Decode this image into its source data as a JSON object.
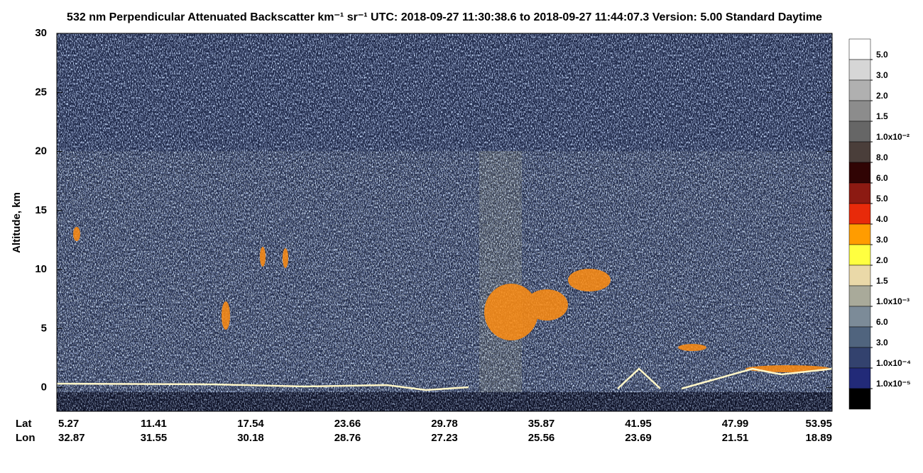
{
  "chart_data": {
    "type": "heatmap",
    "title": "532 nm Perpendicular Attenuated Backscatter km⁻¹ sr⁻¹  UTC: 2018-09-27 11:30:38.6 to 2018-09-27 11:44:07.3  Version: 5.00 Standard Daytime",
    "y_label": "Altitude, km",
    "ylim": [
      -2,
      30
    ],
    "yticks": [
      0,
      5,
      10,
      15,
      20,
      25,
      30
    ],
    "x_labels": [
      {
        "name": "Lat",
        "values": [
          5.27,
          11.41,
          17.54,
          23.66,
          29.78,
          35.87,
          41.95,
          47.99,
          53.95
        ]
      },
      {
        "name": "Lon",
        "values": [
          32.87,
          31.55,
          30.18,
          28.76,
          27.23,
          25.56,
          23.69,
          21.51,
          18.89
        ]
      }
    ],
    "colorscale": {
      "colors": [
        "#ffffff",
        "#d6d6d6",
        "#b0b0b0",
        "#8c8c8c",
        "#666666",
        "#4a3e3a",
        "#300404",
        "#8c1a12",
        "#e82a0a",
        "#ff9c00",
        "#ffff40",
        "#ead9a8",
        "#a9aa9a",
        "#7c8b98",
        "#50647e",
        "#33426e",
        "#222a78",
        "#000000"
      ],
      "ticks": [
        {
          "value": 0.05,
          "label": "5.0"
        },
        {
          "value": 0.03,
          "label": "3.0"
        },
        {
          "value": 0.02,
          "label": "2.0"
        },
        {
          "value": 0.015,
          "label": "1.5"
        },
        {
          "value": 0.01,
          "label": "1.0x10⁻²"
        },
        {
          "value": 0.008,
          "label": "8.0"
        },
        {
          "value": 0.006,
          "label": "6.0"
        },
        {
          "value": 0.005,
          "label": "5.0"
        },
        {
          "value": 0.004,
          "label": "4.0"
        },
        {
          "value": 0.003,
          "label": "3.0"
        },
        {
          "value": 0.002,
          "label": "2.0"
        },
        {
          "value": 0.0015,
          "label": "1.5"
        },
        {
          "value": 0.001,
          "label": "1.0x10⁻³"
        },
        {
          "value": 0.0006,
          "label": "6.0"
        },
        {
          "value": 0.0003,
          "label": "3.0"
        },
        {
          "value": 0.0001,
          "label": "1.0x10⁻⁴"
        },
        {
          "value": 1e-05,
          "label": "1.0x10⁻⁵"
        }
      ]
    }
  }
}
